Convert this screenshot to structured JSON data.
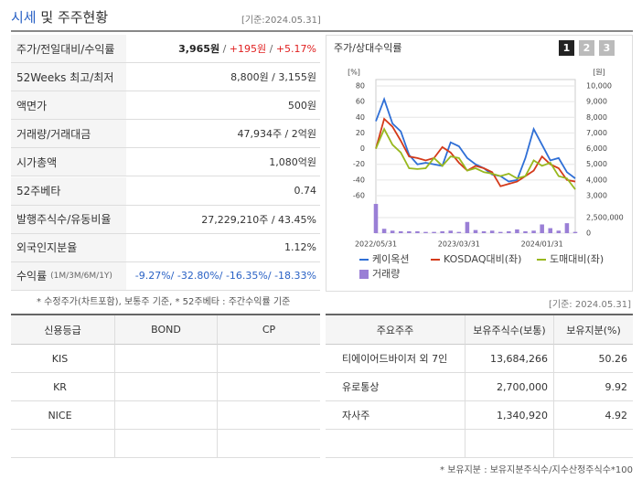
{
  "header": {
    "title_highlight": "시세",
    "title_rest": "및 주주현황",
    "date": "[기준:2024.05.31]"
  },
  "summary": {
    "rows": [
      {
        "label": "주가/전일대비/수익률",
        "parts": [
          {
            "text": "3,965원",
            "color": "#222",
            "bold": true
          },
          {
            "text": " / ",
            "color": "#666"
          },
          {
            "text": "+195원",
            "color": "#e02020"
          },
          {
            "text": " / ",
            "color": "#666"
          },
          {
            "text": "+5.17%",
            "color": "#e02020"
          }
        ]
      },
      {
        "label": "52Weeks 최고/최저",
        "parts": [
          {
            "text": "8,800원 / 3,155원",
            "color": "#333"
          }
        ]
      },
      {
        "label": "액면가",
        "parts": [
          {
            "text": "500원",
            "color": "#333"
          }
        ]
      },
      {
        "label": "거래량/거래대금",
        "parts": [
          {
            "text": "47,934주 / 2억원",
            "color": "#333"
          }
        ]
      },
      {
        "label": "시가총액",
        "parts": [
          {
            "text": "1,080억원",
            "color": "#333"
          }
        ]
      },
      {
        "label": "52주베타",
        "parts": [
          {
            "text": "0.74",
            "color": "#333"
          }
        ]
      },
      {
        "label": "발행주식수/유동비율",
        "parts": [
          {
            "text": "27,229,210주 / 43.45%",
            "color": "#333"
          }
        ]
      },
      {
        "label": "외국인지분율",
        "parts": [
          {
            "text": "1.12%",
            "color": "#333"
          }
        ]
      },
      {
        "label": "수익률",
        "sublabel": "(1M/3M/6M/1Y)",
        "parts": [
          {
            "text": "-9.27%/ -32.80%/ -16.35%/ -18.33%",
            "color": "#2a62c5"
          }
        ]
      }
    ],
    "note": "* 수정주가(차트포함), 보통주 기준, * 52주베타 : 주간수익률 기준"
  },
  "chart_buttons": [
    "1",
    "2",
    "3"
  ],
  "chart_data": {
    "type": "line",
    "title": "주가/상대수익률",
    "y_unit": "[%]",
    "y2_unit": "[원]",
    "categories": [
      "2022/05/31",
      null,
      null,
      null,
      null,
      null,
      null,
      null,
      null,
      null,
      "2023/03/31",
      null,
      null,
      null,
      null,
      null,
      null,
      null,
      null,
      null,
      "2024/01/31",
      null,
      null,
      null,
      null
    ],
    "ylim": [
      -60,
      80
    ],
    "yticks": [
      80,
      60,
      40,
      20,
      0,
      -20,
      -40,
      -60
    ],
    "y2lim": [
      3000,
      10000
    ],
    "y2ticks": [
      {
        "value": 10000,
        "label": "10,000"
      },
      {
        "value": 9000,
        "label": "9,000"
      },
      {
        "value": 8000,
        "label": "8,000"
      },
      {
        "value": 7000,
        "label": "7,000"
      },
      {
        "value": 6000,
        "label": "6,000"
      },
      {
        "value": 5000,
        "label": "5,000"
      },
      {
        "value": 4000,
        "label": "4,000"
      },
      {
        "value": 3000,
        "label": "3,000"
      }
    ],
    "volume_lim": [
      0,
      5000000
    ],
    "volume_ticks": [
      {
        "value": 2500000,
        "label": "2,500,000"
      },
      0
    ],
    "series": [
      {
        "name": "케이옥션",
        "color": "#2f6fd6",
        "values": [
          35,
          63,
          32,
          22,
          -8,
          -20,
          -18,
          -20,
          -22,
          8,
          3,
          -12,
          -20,
          -25,
          -33,
          -35,
          -42,
          -40,
          -12,
          25,
          5,
          -15,
          -12,
          -30,
          -38
        ]
      },
      {
        "name": "KOSDAQ대비(좌)",
        "color": "#d43a1a",
        "values": [
          0,
          38,
          28,
          10,
          -10,
          -12,
          -15,
          -12,
          2,
          -5,
          -18,
          -28,
          -22,
          -25,
          -30,
          -48,
          -45,
          -42,
          -35,
          -28,
          -10,
          -20,
          -25,
          -40,
          -42
        ]
      },
      {
        "name": "도매대비(좌)",
        "color": "#98b81e",
        "values": [
          0,
          25,
          5,
          -5,
          -25,
          -26,
          -25,
          -12,
          -22,
          -10,
          -12,
          -28,
          -25,
          -30,
          -32,
          -35,
          -32,
          -38,
          -35,
          -15,
          -22,
          -18,
          -35,
          -38,
          -52
        ]
      },
      {
        "name": "거래량",
        "color": "#9a7fd6",
        "type": "bar",
        "values": [
          4700000,
          700000,
          400000,
          300000,
          300000,
          300000,
          200000,
          200000,
          300000,
          400000,
          200000,
          1800000,
          500000,
          300000,
          400000,
          200000,
          300000,
          600000,
          300000,
          400000,
          1400000,
          800000,
          400000,
          1600000,
          200000
        ]
      }
    ]
  },
  "credit": {
    "headers": [
      "신용등급",
      "BOND",
      "CP"
    ],
    "rows": [
      [
        "KIS"
      ],
      [
        "KR"
      ],
      [
        "NICE"
      ]
    ]
  },
  "shareholders": {
    "date": "[기준: 2024.05.31]",
    "headers": [
      "주요주주",
      "보유주식수(보통)",
      "보유지분(%)"
    ],
    "rows": [
      [
        "티에이어드바이저 외 7인",
        "13,684,266",
        "50.26"
      ],
      [
        "유로통상",
        "2,700,000",
        "9.92"
      ],
      [
        "자사주",
        "1,340,920",
        "4.92"
      ]
    ],
    "note": "* 보유지분 : 보유지분주식수/지수산정주식수*100"
  }
}
